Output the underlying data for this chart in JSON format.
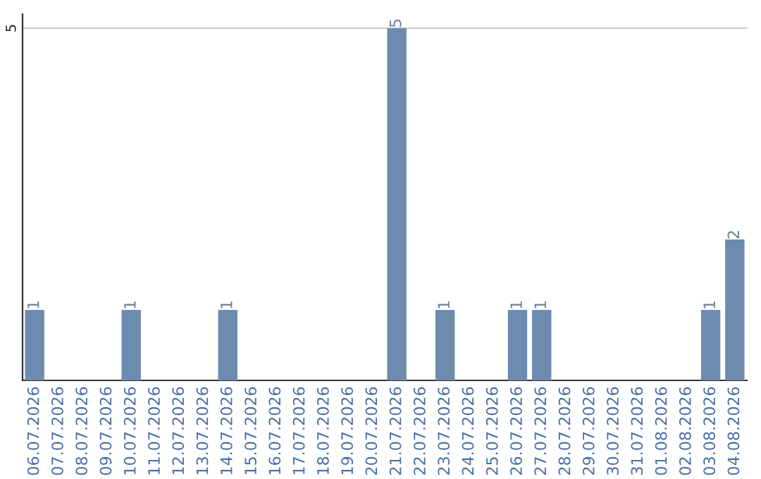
{
  "chart_data": {
    "type": "bar",
    "categories": [
      "06.07.2026",
      "07.07.2026",
      "08.07.2026",
      "09.07.2026",
      "10.07.2026",
      "11.07.2026",
      "12.07.2026",
      "13.07.2026",
      "14.07.2026",
      "15.07.2026",
      "16.07.2026",
      "17.07.2026",
      "18.07.2026",
      "19.07.2026",
      "20.07.2026",
      "21.07.2026",
      "22.07.2026",
      "23.07.2026",
      "24.07.2026",
      "25.07.2026",
      "26.07.2026",
      "27.07.2026",
      "28.07.2026",
      "29.07.2026",
      "30.07.2026",
      "31.07.2026",
      "01.08.2026",
      "02.08.2026",
      "03.08.2026",
      "04.08.2026"
    ],
    "values": [
      1,
      0,
      0,
      0,
      1,
      0,
      0,
      0,
      1,
      0,
      0,
      0,
      0,
      0,
      0,
      5,
      0,
      1,
      0,
      0,
      1,
      1,
      0,
      0,
      0,
      0,
      0,
      0,
      1,
      2
    ],
    "value_labels": [
      "1",
      null,
      null,
      null,
      "1",
      null,
      null,
      null,
      "1",
      null,
      null,
      null,
      null,
      null,
      null,
      "5",
      null,
      "1",
      null,
      null,
      "1",
      "1",
      null,
      null,
      null,
      null,
      null,
      null,
      "1",
      "2"
    ],
    "color": "#6b8cae",
    "ylim": [
      0,
      5.2
    ],
    "yticks": [
      5
    ],
    "grid": "y"
  }
}
